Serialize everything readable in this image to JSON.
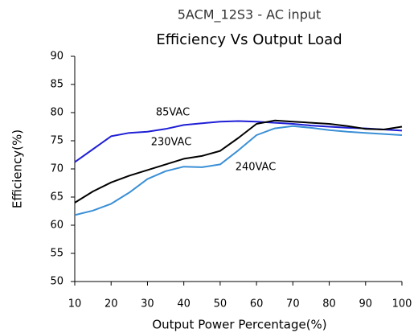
{
  "chart_data": {
    "type": "line",
    "title": "5ACM_12S3 - AC input",
    "subtitle": "Efficiency Vs Output Load",
    "x_label": "Output Power Percentage(%)",
    "y_label": "Efficiency(%)",
    "x": [
      10,
      15,
      20,
      25,
      30,
      35,
      40,
      45,
      50,
      55,
      60,
      65,
      70,
      75,
      80,
      85,
      90,
      95,
      100
    ],
    "series": [
      {
        "name": "85VAC",
        "color": "#1f1fd6",
        "values": [
          71.2,
          73.5,
          75.8,
          76.4,
          76.6,
          77.1,
          77.8,
          78.1,
          78.4,
          78.5,
          78.4,
          78.2,
          78.0,
          77.7,
          77.5,
          77.3,
          77.2,
          77.0,
          76.8
        ]
      },
      {
        "name": "230VAC",
        "color": "#000000",
        "values": [
          64,
          66,
          67.6,
          68.8,
          69.8,
          70.8,
          71.8,
          72.3,
          73.2,
          75.5,
          78.0,
          78.6,
          78.4,
          78.2,
          78.0,
          77.6,
          77.1,
          77.0,
          77.5
        ]
      },
      {
        "name": "240VAC",
        "color": "#3a8fd6",
        "values": [
          61.8,
          62.6,
          63.8,
          65.8,
          68.2,
          69.6,
          70.4,
          70.3,
          70.8,
          73.3,
          76.0,
          77.2,
          77.6,
          77.3,
          76.9,
          76.6,
          76.4,
          76.2,
          76.0
        ]
      }
    ],
    "xlim": [
      10,
      100
    ],
    "xticks": [
      10,
      20,
      30,
      40,
      50,
      60,
      70,
      80,
      90,
      100
    ],
    "ylim": [
      50,
      90
    ],
    "yticks": [
      50,
      55,
      60,
      65,
      70,
      75,
      80,
      85,
      90
    ],
    "grid": false
  }
}
